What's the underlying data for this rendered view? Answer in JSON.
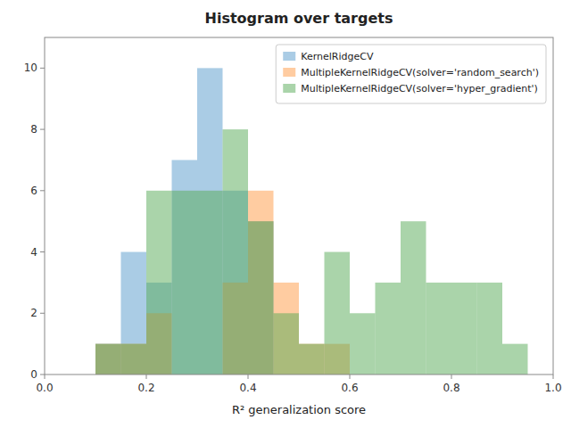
{
  "chart_data": {
    "type": "histogram",
    "title": "Histogram over targets",
    "xlabel": "R² generalization score",
    "bins": [
      0.0,
      0.05,
      0.1,
      0.15,
      0.2,
      0.25,
      0.3,
      0.35,
      0.4,
      0.45,
      0.5,
      0.55,
      0.6,
      0.65,
      0.7,
      0.75,
      0.8,
      0.85,
      0.9,
      0.95,
      1.0
    ],
    "series": [
      {
        "name": "KernelRidgeCV",
        "color": "#5599cc",
        "values": [
          0,
          0,
          1,
          4,
          3,
          7,
          10,
          6,
          5,
          0,
          0,
          0,
          0,
          0,
          0,
          0,
          0,
          0,
          0,
          0
        ]
      },
      {
        "name": "MultipleKernelRidgeCV(solver='random_search')",
        "color": "#ff9944",
        "values": [
          0,
          0,
          1,
          1,
          2,
          0,
          0,
          3,
          6,
          3,
          1,
          1,
          0,
          0,
          0,
          0,
          0,
          0,
          0,
          0
        ]
      },
      {
        "name": "MultipleKernelRidgeCV(solver='hyper_gradient')",
        "color": "#55aa55",
        "values": [
          0,
          0,
          1,
          1,
          6,
          6,
          6,
          8,
          5,
          2,
          1,
          4,
          2,
          3,
          5,
          3,
          3,
          3,
          1,
          0
        ]
      }
    ],
    "xlim": [
      0.0,
      1.0
    ],
    "ylim": [
      0,
      11
    ],
    "xticks": [
      {
        "value": 0.0,
        "label": "0.0"
      },
      0.2,
      0.4,
      0.6,
      0.8,
      {
        "value": 1.0,
        "label": "1.0"
      }
    ],
    "yticks": [
      0,
      2,
      4,
      6,
      8,
      10
    ],
    "legend": "upper right",
    "grid": false
  }
}
